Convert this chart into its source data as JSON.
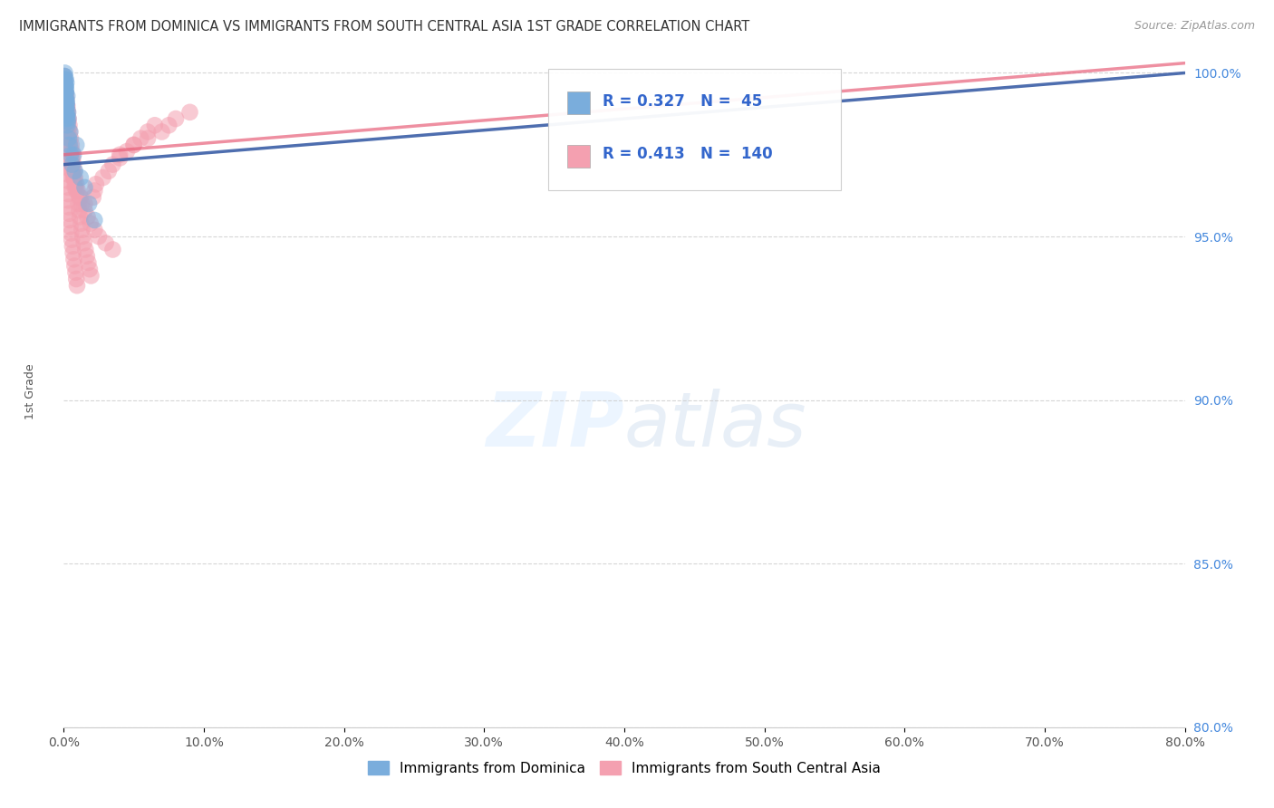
{
  "title": "IMMIGRANTS FROM DOMINICA VS IMMIGRANTS FROM SOUTH CENTRAL ASIA 1ST GRADE CORRELATION CHART",
  "source": "Source: ZipAtlas.com",
  "ylabel": "1st Grade",
  "xlim": [
    0.0,
    80.0
  ],
  "ylim": [
    80.0,
    100.5
  ],
  "xticks": [
    0.0,
    10.0,
    20.0,
    30.0,
    40.0,
    50.0,
    60.0,
    70.0,
    80.0
  ],
  "yticks": [
    80.0,
    85.0,
    90.0,
    95.0,
    100.0
  ],
  "dominica_color": "#7AADDC",
  "sca_color": "#F4A0B0",
  "trend_dominica_color": "#3B5EA6",
  "trend_sca_color": "#E8607A",
  "R_dominica": 0.327,
  "N_dominica": 45,
  "R_sca": 0.413,
  "N_sca": 140,
  "background_color": "#FFFFFF",
  "dominica_x": [
    0.1,
    0.15,
    0.12,
    0.08,
    0.2,
    0.18,
    0.25,
    0.14,
    0.22,
    0.16,
    0.3,
    0.11,
    0.17,
    0.13,
    0.09,
    0.19,
    0.21,
    0.24,
    0.07,
    0.06,
    0.28,
    0.32,
    0.1,
    0.05,
    0.08,
    0.15,
    0.12,
    0.18,
    0.22,
    0.14,
    0.16,
    0.2,
    0.26,
    0.35,
    0.4,
    0.5,
    0.6,
    0.8,
    1.2,
    1.5,
    1.8,
    2.2,
    0.7,
    0.45,
    0.9
  ],
  "dominica_y": [
    99.5,
    99.8,
    99.2,
    99.6,
    99.1,
    99.7,
    99.3,
    99.4,
    99.0,
    99.5,
    98.8,
    99.6,
    99.2,
    99.4,
    99.7,
    98.9,
    99.1,
    98.7,
    99.8,
    99.9,
    98.5,
    98.6,
    99.3,
    99.9,
    100.0,
    99.6,
    99.4,
    98.8,
    98.7,
    99.2,
    99.0,
    98.6,
    98.4,
    98.0,
    97.8,
    97.5,
    97.2,
    97.0,
    96.8,
    96.5,
    96.0,
    95.5,
    97.5,
    98.2,
    97.8
  ],
  "sca_x": [
    0.05,
    0.08,
    0.1,
    0.12,
    0.15,
    0.18,
    0.2,
    0.22,
    0.25,
    0.28,
    0.3,
    0.35,
    0.4,
    0.45,
    0.5,
    0.55,
    0.6,
    0.65,
    0.7,
    0.8,
    0.05,
    0.07,
    0.09,
    0.11,
    0.13,
    0.14,
    0.16,
    0.17,
    0.19,
    0.21,
    0.23,
    0.24,
    0.26,
    0.27,
    0.29,
    0.31,
    0.32,
    0.33,
    0.36,
    0.38,
    0.42,
    0.47,
    0.52,
    0.57,
    0.62,
    0.67,
    0.72,
    0.78,
    0.85,
    0.9,
    0.95,
    1.05,
    1.1,
    1.15,
    1.25,
    1.3,
    1.35,
    1.45,
    1.55,
    1.65,
    1.75,
    1.85,
    1.95,
    2.1,
    2.2,
    2.3,
    2.8,
    3.2,
    3.5,
    4.0,
    4.5,
    5.0,
    5.5,
    6.0,
    6.5,
    0.04,
    0.06,
    0.08,
    0.1,
    0.12,
    0.05,
    0.09,
    0.15,
    0.2,
    0.25,
    0.3,
    0.35,
    0.4,
    0.45,
    0.5,
    0.55,
    0.6,
    0.65,
    0.7,
    0.75,
    0.8,
    0.9,
    1.0,
    1.2,
    1.5,
    0.03,
    0.04,
    0.05,
    0.06,
    0.07,
    0.08,
    0.09,
    0.1,
    0.11,
    0.12,
    0.13,
    0.14,
    0.15,
    0.16,
    0.17,
    0.18,
    0.19,
    0.2,
    0.22,
    0.23,
    0.6,
    0.7,
    0.8,
    0.9,
    1.1,
    1.3,
    1.5,
    1.7,
    1.9,
    2.2,
    2.5,
    3.0,
    3.5,
    4.0,
    5.0,
    6.0,
    7.0,
    7.5,
    8.0,
    9.0
  ],
  "sca_y": [
    99.0,
    99.2,
    99.4,
    99.1,
    99.3,
    98.8,
    99.0,
    98.7,
    98.9,
    98.6,
    98.5,
    98.3,
    98.0,
    97.8,
    97.6,
    97.4,
    97.2,
    97.0,
    96.8,
    96.5,
    99.5,
    99.3,
    99.1,
    98.9,
    98.7,
    98.5,
    98.3,
    98.1,
    97.9,
    97.7,
    97.5,
    97.3,
    97.1,
    96.9,
    96.7,
    96.5,
    96.3,
    96.1,
    95.9,
    95.7,
    95.5,
    95.3,
    95.1,
    94.9,
    94.7,
    94.5,
    94.3,
    94.1,
    93.9,
    93.7,
    93.5,
    96.0,
    95.8,
    95.6,
    95.4,
    95.2,
    95.0,
    94.8,
    94.6,
    94.4,
    94.2,
    94.0,
    93.8,
    96.2,
    96.4,
    96.6,
    96.8,
    97.0,
    97.2,
    97.4,
    97.6,
    97.8,
    98.0,
    98.2,
    98.4,
    99.6,
    99.4,
    99.2,
    99.0,
    98.8,
    99.8,
    99.6,
    99.4,
    99.2,
    99.0,
    98.8,
    98.6,
    98.4,
    98.2,
    98.0,
    97.8,
    97.6,
    97.4,
    97.2,
    97.0,
    96.8,
    96.6,
    96.4,
    96.2,
    96.0,
    99.9,
    99.8,
    99.7,
    99.6,
    99.5,
    99.4,
    99.3,
    99.2,
    99.1,
    99.0,
    98.9,
    98.8,
    98.7,
    98.6,
    98.5,
    98.4,
    98.3,
    98.2,
    98.1,
    98.0,
    97.0,
    96.8,
    96.6,
    96.4,
    96.2,
    96.0,
    95.8,
    95.6,
    95.4,
    95.2,
    95.0,
    94.8,
    94.6,
    97.5,
    97.8,
    98.0,
    98.2,
    98.4,
    98.6,
    98.8
  ],
  "trend_dominica_x0": 0.0,
  "trend_dominica_y0": 97.2,
  "trend_dominica_x1": 80.0,
  "trend_dominica_y1": 100.0,
  "trend_sca_x0": 0.0,
  "trend_sca_y0": 97.5,
  "trend_sca_x1": 80.0,
  "trend_sca_y1": 100.3
}
